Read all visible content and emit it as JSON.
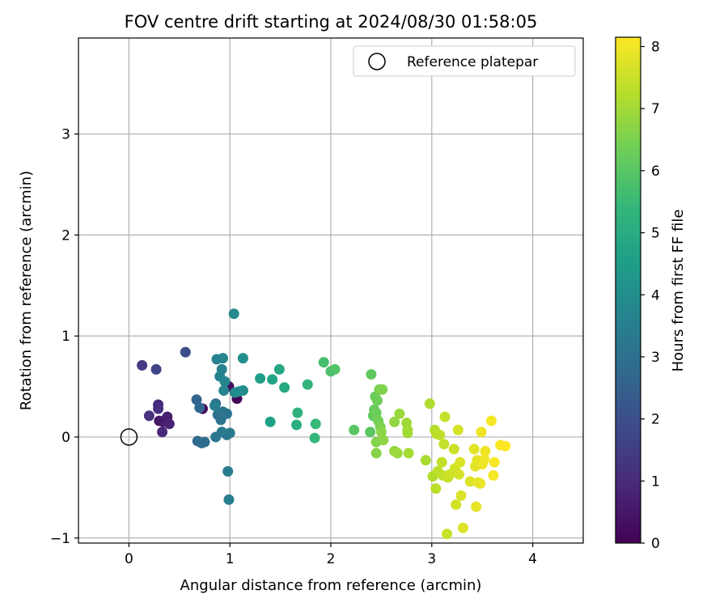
{
  "chart_data": {
    "type": "scatter",
    "title": "FOV centre drift starting at 2024/08/30 01:58:05",
    "xlabel": "Angular distance from reference (arcmin)",
    "ylabel": "Rotation from reference (arcmin)",
    "xlim": [
      -0.5,
      4.5
    ],
    "ylim": [
      -1.05,
      3.95
    ],
    "xticks": [
      0,
      1,
      2,
      3,
      4
    ],
    "yticks": [
      -1,
      0,
      1,
      2,
      3
    ],
    "grid": true,
    "legend": {
      "placement": "top-right",
      "entries": [
        "Reference platepar"
      ]
    },
    "reference_point": {
      "x": 0,
      "y": 0
    },
    "colorbar": {
      "label": "Hours from first FF file",
      "colormap": "viridis",
      "range": [
        0,
        8.15
      ],
      "ticks": [
        0,
        1,
        2,
        3,
        4,
        5,
        6,
        7,
        8
      ]
    },
    "colormap_stops": [
      "#440154",
      "#482878",
      "#3e4989",
      "#31688e",
      "#26828e",
      "#1f9e89",
      "#35b779",
      "#6ece58",
      "#b5de2b",
      "#fde725"
    ],
    "points": [
      {
        "x": 1.07,
        "y": 0.38,
        "t": 0.05
      },
      {
        "x": 0.73,
        "y": 0.28,
        "t": 0.2
      },
      {
        "x": 0.99,
        "y": 0.5,
        "t": 0.3
      },
      {
        "x": 0.3,
        "y": 0.16,
        "t": 0.5
      },
      {
        "x": 0.34,
        "y": 0.15,
        "t": 0.6
      },
      {
        "x": 0.38,
        "y": 0.2,
        "t": 0.7
      },
      {
        "x": 0.4,
        "y": 0.13,
        "t": 0.8
      },
      {
        "x": 0.33,
        "y": 0.05,
        "t": 0.9
      },
      {
        "x": 0.29,
        "y": 0.32,
        "t": 1.0
      },
      {
        "x": 0.29,
        "y": 0.28,
        "t": 1.1
      },
      {
        "x": 0.2,
        "y": 0.21,
        "t": 1.2
      },
      {
        "x": 0.13,
        "y": 0.71,
        "t": 1.4
      },
      {
        "x": 0.27,
        "y": 0.67,
        "t": 1.7
      },
      {
        "x": 0.56,
        "y": 0.84,
        "t": 2.0
      },
      {
        "x": 0.67,
        "y": 0.37,
        "t": 2.6
      },
      {
        "x": 0.7,
        "y": 0.29,
        "t": 2.7
      },
      {
        "x": 0.68,
        "y": -0.04,
        "t": 2.8
      },
      {
        "x": 0.72,
        "y": -0.06,
        "t": 2.85
      },
      {
        "x": 0.75,
        "y": -0.05,
        "t": 2.9
      },
      {
        "x": 0.86,
        "y": 0.33,
        "t": 2.95
      },
      {
        "x": 0.88,
        "y": 0.22,
        "t": 3.0
      },
      {
        "x": 0.91,
        "y": 0.17,
        "t": 3.05
      },
      {
        "x": 0.93,
        "y": 0.25,
        "t": 3.1
      },
      {
        "x": 0.97,
        "y": 0.23,
        "t": 3.15
      },
      {
        "x": 0.86,
        "y": 0.0,
        "t": 3.2
      },
      {
        "x": 0.92,
        "y": 0.05,
        "t": 3.25
      },
      {
        "x": 0.97,
        "y": 0.02,
        "t": 3.3
      },
      {
        "x": 1.0,
        "y": 0.04,
        "t": 3.35
      },
      {
        "x": 0.98,
        "y": -0.34,
        "t": 3.4
      },
      {
        "x": 0.99,
        "y": -0.62,
        "t": 3.45
      },
      {
        "x": 0.85,
        "y": 0.31,
        "t": 3.5
      },
      {
        "x": 0.87,
        "y": 0.77,
        "t": 3.55
      },
      {
        "x": 0.9,
        "y": 0.6,
        "t": 3.6
      },
      {
        "x": 0.92,
        "y": 0.67,
        "t": 3.65
      },
      {
        "x": 0.93,
        "y": 0.78,
        "t": 3.7
      },
      {
        "x": 0.95,
        "y": 0.55,
        "t": 3.75
      },
      {
        "x": 0.94,
        "y": 0.46,
        "t": 3.8
      },
      {
        "x": 1.04,
        "y": 1.22,
        "t": 3.85
      },
      {
        "x": 1.05,
        "y": 0.44,
        "t": 3.9
      },
      {
        "x": 1.09,
        "y": 0.45,
        "t": 3.95
      },
      {
        "x": 1.13,
        "y": 0.46,
        "t": 4.0
      },
      {
        "x": 1.13,
        "y": 0.78,
        "t": 4.05
      },
      {
        "x": 1.3,
        "y": 0.58,
        "t": 4.5
      },
      {
        "x": 1.4,
        "y": 0.15,
        "t": 4.6
      },
      {
        "x": 1.42,
        "y": 0.57,
        "t": 4.7
      },
      {
        "x": 1.49,
        "y": 0.67,
        "t": 4.8
      },
      {
        "x": 1.54,
        "y": 0.49,
        "t": 4.9
      },
      {
        "x": 1.66,
        "y": 0.12,
        "t": 5.1
      },
      {
        "x": 1.67,
        "y": 0.24,
        "t": 5.2
      },
      {
        "x": 1.77,
        "y": 0.52,
        "t": 5.3
      },
      {
        "x": 1.84,
        "y": -0.01,
        "t": 5.4
      },
      {
        "x": 1.85,
        "y": 0.13,
        "t": 5.5
      },
      {
        "x": 1.93,
        "y": 0.74,
        "t": 5.7
      },
      {
        "x": 2.0,
        "y": 0.65,
        "t": 5.8
      },
      {
        "x": 2.04,
        "y": 0.67,
        "t": 5.9
      },
      {
        "x": 2.23,
        "y": 0.07,
        "t": 6.0
      },
      {
        "x": 2.39,
        "y": 0.05,
        "t": 6.05
      },
      {
        "x": 2.4,
        "y": 0.62,
        "t": 6.1
      },
      {
        "x": 2.42,
        "y": 0.21,
        "t": 6.15
      },
      {
        "x": 2.43,
        "y": 0.27,
        "t": 6.2
      },
      {
        "x": 2.44,
        "y": 0.4,
        "t": 6.25
      },
      {
        "x": 2.45,
        "y": 0.24,
        "t": 6.3
      },
      {
        "x": 2.46,
        "y": 0.36,
        "t": 6.35
      },
      {
        "x": 2.47,
        "y": 0.16,
        "t": 6.4
      },
      {
        "x": 2.48,
        "y": 0.47,
        "t": 6.45
      },
      {
        "x": 2.49,
        "y": 0.1,
        "t": 6.5
      },
      {
        "x": 2.51,
        "y": 0.47,
        "t": 6.55
      },
      {
        "x": 2.45,
        "y": -0.05,
        "t": 6.6
      },
      {
        "x": 2.45,
        "y": -0.16,
        "t": 6.65
      },
      {
        "x": 2.5,
        "y": 0.05,
        "t": 6.7
      },
      {
        "x": 2.52,
        "y": -0.03,
        "t": 6.75
      },
      {
        "x": 2.63,
        "y": 0.15,
        "t": 6.8
      },
      {
        "x": 2.63,
        "y": -0.14,
        "t": 6.85
      },
      {
        "x": 2.66,
        "y": -0.16,
        "t": 6.9
      },
      {
        "x": 2.68,
        "y": 0.23,
        "t": 6.9
      },
      {
        "x": 2.75,
        "y": 0.14,
        "t": 6.95
      },
      {
        "x": 2.76,
        "y": 0.07,
        "t": 7.0
      },
      {
        "x": 2.76,
        "y": 0.04,
        "t": 7.0
      },
      {
        "x": 2.77,
        "y": -0.16,
        "t": 7.05
      },
      {
        "x": 2.94,
        "y": -0.23,
        "t": 7.1
      },
      {
        "x": 2.98,
        "y": 0.33,
        "t": 7.15
      },
      {
        "x": 3.01,
        "y": -0.39,
        "t": 7.2
      },
      {
        "x": 3.03,
        "y": 0.07,
        "t": 7.25
      },
      {
        "x": 3.04,
        "y": -0.51,
        "t": 7.3
      },
      {
        "x": 3.05,
        "y": 0.03,
        "t": 7.3
      },
      {
        "x": 3.06,
        "y": -0.34,
        "t": 7.35
      },
      {
        "x": 3.08,
        "y": 0.02,
        "t": 7.35
      },
      {
        "x": 3.1,
        "y": -0.25,
        "t": 7.4
      },
      {
        "x": 3.11,
        "y": -0.38,
        "t": 7.4
      },
      {
        "x": 3.12,
        "y": -0.07,
        "t": 7.45
      },
      {
        "x": 3.13,
        "y": 0.2,
        "t": 7.45
      },
      {
        "x": 3.15,
        "y": -0.96,
        "t": 7.5
      },
      {
        "x": 3.16,
        "y": -0.4,
        "t": 7.5
      },
      {
        "x": 3.18,
        "y": -0.37,
        "t": 7.55
      },
      {
        "x": 3.22,
        "y": -0.12,
        "t": 7.55
      },
      {
        "x": 3.23,
        "y": -0.31,
        "t": 7.6
      },
      {
        "x": 3.24,
        "y": -0.67,
        "t": 7.6
      },
      {
        "x": 3.26,
        "y": 0.07,
        "t": 7.65
      },
      {
        "x": 3.27,
        "y": -0.37,
        "t": 7.65
      },
      {
        "x": 3.28,
        "y": -0.25,
        "t": 7.7
      },
      {
        "x": 3.29,
        "y": -0.58,
        "t": 7.7
      },
      {
        "x": 3.31,
        "y": -0.9,
        "t": 7.75
      },
      {
        "x": 3.38,
        "y": -0.44,
        "t": 7.75
      },
      {
        "x": 3.42,
        "y": -0.12,
        "t": 7.8
      },
      {
        "x": 3.43,
        "y": -0.29,
        "t": 7.8
      },
      {
        "x": 3.44,
        "y": -0.69,
        "t": 7.85
      },
      {
        "x": 3.45,
        "y": -0.23,
        "t": 7.85
      },
      {
        "x": 3.46,
        "y": -0.45,
        "t": 7.9
      },
      {
        "x": 3.48,
        "y": -0.46,
        "t": 7.9
      },
      {
        "x": 3.49,
        "y": 0.05,
        "t": 7.95
      },
      {
        "x": 3.5,
        "y": -0.27,
        "t": 7.95
      },
      {
        "x": 3.52,
        "y": -0.22,
        "t": 8.0
      },
      {
        "x": 3.53,
        "y": -0.14,
        "t": 8.0
      },
      {
        "x": 3.59,
        "y": 0.16,
        "t": 8.05
      },
      {
        "x": 3.61,
        "y": -0.38,
        "t": 8.05
      },
      {
        "x": 3.62,
        "y": -0.25,
        "t": 8.1
      },
      {
        "x": 3.68,
        "y": -0.08,
        "t": 8.1
      },
      {
        "x": 3.73,
        "y": -0.09,
        "t": 8.15
      }
    ]
  }
}
